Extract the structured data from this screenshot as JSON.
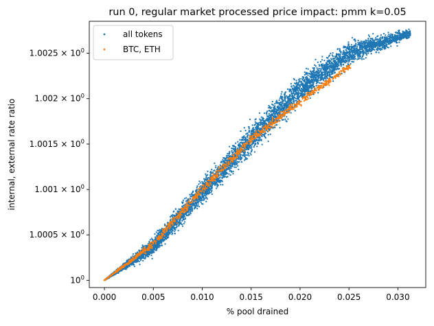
{
  "chart_data": {
    "type": "scatter",
    "title": "run 0, regular market processed price impact: pmm k=0.05",
    "xlabel": "% pool drained",
    "ylabel": "internal, external rate ratio",
    "xlim": [
      -0.00155,
      0.03285
    ],
    "ylim": [
      0.99992,
      1.002852
    ],
    "x_ticks": [
      {
        "value": 0.0,
        "label": "0.000"
      },
      {
        "value": 0.005,
        "label": "0.005"
      },
      {
        "value": 0.01,
        "label": "0.010"
      },
      {
        "value": 0.015,
        "label": "0.015"
      },
      {
        "value": 0.02,
        "label": "0.020"
      },
      {
        "value": 0.025,
        "label": "0.025"
      },
      {
        "value": 0.03,
        "label": "0.030"
      }
    ],
    "y_ticks": [
      {
        "value": 1.0,
        "mantissa": "10",
        "sup": "0"
      },
      {
        "value": 1.0005,
        "mantissa": "1.0005 × 10",
        "sup": "0"
      },
      {
        "value": 1.001,
        "mantissa": "1.001 × 10",
        "sup": "0"
      },
      {
        "value": 1.0015,
        "mantissa": "1.0015 × 10",
        "sup": "0"
      },
      {
        "value": 1.002,
        "mantissa": "1.002 × 10",
        "sup": "0"
      },
      {
        "value": 1.0025,
        "mantissa": "1.0025 × 10",
        "sup": "0"
      }
    ],
    "grid": false,
    "legend_position": "top-left",
    "series": [
      {
        "name": "all tokens",
        "color": "#1f77b4",
        "cloud": {
          "x_range": [
            0.0,
            0.0313
          ],
          "centerline": [
            [
              0.0,
              1.0
            ],
            [
              0.005,
              1.00038
            ],
            [
              0.01,
              1.00098
            ],
            [
              0.015,
              1.00155
            ],
            [
              0.02,
              1.0021
            ],
            [
              0.025,
              1.0025
            ],
            [
              0.0313,
              1.00272
            ]
          ],
          "spread_at_x": [
            [
              0.0,
              0.0
            ],
            [
              0.005,
              0.00012
            ],
            [
              0.01,
              0.00018
            ],
            [
              0.015,
              0.00022
            ],
            [
              0.02,
              0.00022
            ],
            [
              0.025,
              0.00018
            ],
            [
              0.0313,
              6e-05
            ]
          ],
          "point_count": 6500
        }
      },
      {
        "name": "BTC, ETH",
        "color": "#ff7f0e",
        "cloud": {
          "x_range": [
            0.0,
            0.0252
          ],
          "centerline": [
            [
              0.0,
              1.0
            ],
            [
              0.005,
              1.0004
            ],
            [
              0.01,
              1.001
            ],
            [
              0.015,
              1.00155
            ],
            [
              0.02,
              1.00197
            ],
            [
              0.025,
              1.00235
            ]
          ],
          "spread_at_x": [
            [
              0.0,
              0.0
            ],
            [
              0.005,
              6e-05
            ],
            [
              0.01,
              7e-05
            ],
            [
              0.015,
              7e-05
            ],
            [
              0.02,
              6e-05
            ],
            [
              0.025,
              4e-05
            ]
          ],
          "point_count": 1100
        }
      }
    ]
  }
}
